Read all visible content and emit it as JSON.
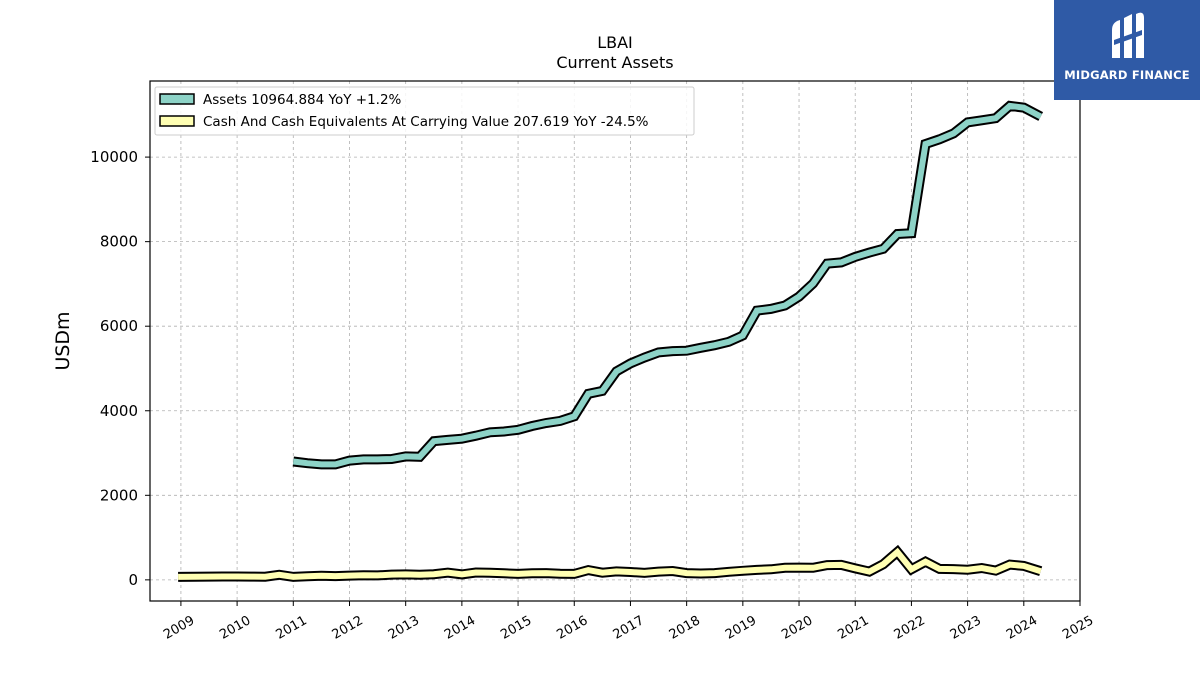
{
  "logo": {
    "name": "MIDGARD FINANCE",
    "bg_color": "#2f5aa6"
  },
  "chart_data": {
    "type": "line",
    "title": "LBAI",
    "subtitle": "Current  Assets",
    "ylabel": "USDm",
    "xlabel": "",
    "xlim": [
      2008.45,
      2025.0
    ],
    "ylim": [
      -500,
      11800
    ],
    "yticks": [
      0,
      2000,
      4000,
      6000,
      8000,
      10000
    ],
    "xticks": [
      "2009",
      "2010",
      "2011",
      "2012",
      "2013",
      "2014",
      "2015",
      "2016",
      "2017",
      "2018",
      "2019",
      "2020",
      "2021",
      "2022",
      "2023",
      "2024",
      "2025"
    ],
    "grid": true,
    "legend_position": "top-left",
    "series": [
      {
        "name": "Assets",
        "legend": "Assets  10964.884 YoY +1.2%",
        "color": "#8dd3c7",
        "points": [
          [
            2011.0,
            2800
          ],
          [
            2011.25,
            2760
          ],
          [
            2011.5,
            2730
          ],
          [
            2011.75,
            2730
          ],
          [
            2012.0,
            2820
          ],
          [
            2012.25,
            2850
          ],
          [
            2012.5,
            2850
          ],
          [
            2012.75,
            2860
          ],
          [
            2013.0,
            2920
          ],
          [
            2013.25,
            2910
          ],
          [
            2013.5,
            3280
          ],
          [
            2013.75,
            3310
          ],
          [
            2014.0,
            3340
          ],
          [
            2014.25,
            3410
          ],
          [
            2014.5,
            3490
          ],
          [
            2014.75,
            3510
          ],
          [
            2015.0,
            3550
          ],
          [
            2015.25,
            3640
          ],
          [
            2015.5,
            3710
          ],
          [
            2015.75,
            3760
          ],
          [
            2016.0,
            3870
          ],
          [
            2016.25,
            4400
          ],
          [
            2016.5,
            4470
          ],
          [
            2016.75,
            4930
          ],
          [
            2017.0,
            5120
          ],
          [
            2017.25,
            5260
          ],
          [
            2017.5,
            5380
          ],
          [
            2017.75,
            5410
          ],
          [
            2018.0,
            5420
          ],
          [
            2018.25,
            5490
          ],
          [
            2018.5,
            5550
          ],
          [
            2018.75,
            5630
          ],
          [
            2019.0,
            5780
          ],
          [
            2019.25,
            6370
          ],
          [
            2019.5,
            6410
          ],
          [
            2019.75,
            6490
          ],
          [
            2020.0,
            6700
          ],
          [
            2020.25,
            7010
          ],
          [
            2020.5,
            7480
          ],
          [
            2020.75,
            7510
          ],
          [
            2021.0,
            7640
          ],
          [
            2021.25,
            7740
          ],
          [
            2021.5,
            7830
          ],
          [
            2021.75,
            8180
          ],
          [
            2022.0,
            8200
          ],
          [
            2022.25,
            10310
          ],
          [
            2022.5,
            10420
          ],
          [
            2022.75,
            10560
          ],
          [
            2023.0,
            10820
          ],
          [
            2023.25,
            10870
          ],
          [
            2023.5,
            10920
          ],
          [
            2023.75,
            11210
          ],
          [
            2024.0,
            11170
          ],
          [
            2024.3,
            10960
          ]
        ]
      },
      {
        "name": "Cash And Cash Equivalents At Carrying Value",
        "legend": "Cash And Cash Equivalents At Carrying Value  207.619 YoY -24.5%",
        "color": "#ffffb3",
        "points": [
          [
            2008.95,
            70
          ],
          [
            2009.25,
            75
          ],
          [
            2009.5,
            78
          ],
          [
            2009.75,
            80
          ],
          [
            2010.0,
            80
          ],
          [
            2010.25,
            78
          ],
          [
            2010.5,
            75
          ],
          [
            2010.75,
            120
          ],
          [
            2011.0,
            70
          ],
          [
            2011.25,
            85
          ],
          [
            2011.5,
            95
          ],
          [
            2011.75,
            90
          ],
          [
            2012.0,
            100
          ],
          [
            2012.25,
            110
          ],
          [
            2012.5,
            105
          ],
          [
            2012.75,
            125
          ],
          [
            2013.0,
            130
          ],
          [
            2013.25,
            120
          ],
          [
            2013.5,
            135
          ],
          [
            2013.75,
            170
          ],
          [
            2014.0,
            130
          ],
          [
            2014.25,
            175
          ],
          [
            2014.5,
            170
          ],
          [
            2014.75,
            155
          ],
          [
            2015.0,
            140
          ],
          [
            2015.25,
            155
          ],
          [
            2015.5,
            160
          ],
          [
            2015.75,
            145
          ],
          [
            2016.0,
            140
          ],
          [
            2016.25,
            230
          ],
          [
            2016.5,
            170
          ],
          [
            2016.75,
            200
          ],
          [
            2017.0,
            185
          ],
          [
            2017.25,
            165
          ],
          [
            2017.5,
            195
          ],
          [
            2017.75,
            210
          ],
          [
            2018.0,
            160
          ],
          [
            2018.25,
            150
          ],
          [
            2018.5,
            160
          ],
          [
            2018.75,
            190
          ],
          [
            2019.0,
            215
          ],
          [
            2019.25,
            235
          ],
          [
            2019.5,
            250
          ],
          [
            2019.75,
            285
          ],
          [
            2020.0,
            290
          ],
          [
            2020.25,
            285
          ],
          [
            2020.5,
            350
          ],
          [
            2020.75,
            355
          ],
          [
            2021.0,
            270
          ],
          [
            2021.25,
            195
          ],
          [
            2021.5,
            370
          ],
          [
            2021.75,
            660
          ],
          [
            2022.0,
            250
          ],
          [
            2022.25,
            430
          ],
          [
            2022.5,
            260
          ],
          [
            2022.75,
            255
          ],
          [
            2023.0,
            240
          ],
          [
            2023.25,
            280
          ],
          [
            2023.5,
            220
          ],
          [
            2023.75,
            360
          ],
          [
            2024.0,
            330
          ],
          [
            2024.3,
            205
          ]
        ]
      }
    ]
  }
}
